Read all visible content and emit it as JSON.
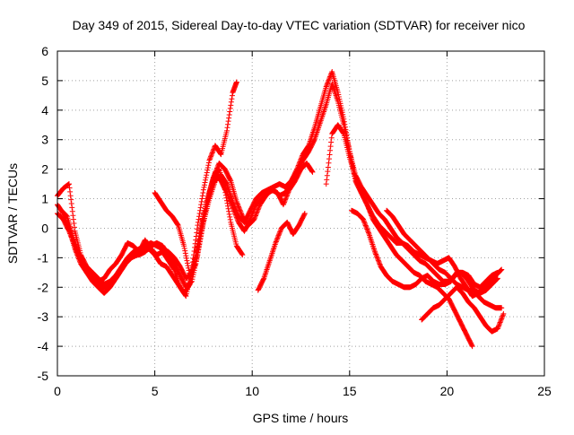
{
  "chart_data": {
    "type": "scatter",
    "title": "Day 349 of 2015, Sidereal Day-to-day VTEC variation (SDTVAR) for receiver nico",
    "xlabel": "GPS time / hours",
    "ylabel": "SDTVAR / TECUs",
    "xlim": [
      0,
      25
    ],
    "ylim": [
      -5,
      6
    ],
    "x_ticks": [
      0,
      5,
      10,
      15,
      20,
      25
    ],
    "y_ticks": [
      -5,
      -4,
      -3,
      -2,
      -1,
      0,
      1,
      2,
      3,
      4,
      5,
      6
    ],
    "x_tick_labels": [
      "0",
      "5",
      "10",
      "15",
      "20",
      "25"
    ],
    "y_tick_labels": [
      "-5",
      "-4",
      "-3",
      "-2",
      "-1",
      "0",
      "1",
      "2",
      "3",
      "4",
      "5",
      "6"
    ],
    "grid": true,
    "marker": "+",
    "color": "#ff0000",
    "series": [
      {
        "x": [
          0.0,
          0.3,
          0.6,
          0.9,
          1.2,
          1.5,
          1.8,
          2.1,
          2.4,
          2.7,
          3.0,
          3.3,
          3.6,
          3.9,
          4.2,
          4.5,
          4.8,
          5.1,
          5.4,
          5.7,
          6.0,
          6.3,
          6.6,
          6.9,
          7.2,
          7.5,
          7.8,
          8.1,
          8.4,
          8.7,
          9.0,
          9.2
        ],
        "y": [
          1.1,
          1.35,
          1.5,
          -0.1,
          -0.9,
          -1.3,
          -1.6,
          -1.8,
          -1.7,
          -1.4,
          -1.2,
          -0.9,
          -0.5,
          -0.6,
          -0.8,
          -0.4,
          -0.7,
          -0.9,
          -0.8,
          -1.1,
          -1.4,
          -2.0,
          -2.3,
          -1.4,
          0.1,
          1.3,
          2.3,
          2.8,
          2.5,
          3.3,
          4.6,
          4.95
        ]
      },
      {
        "x": [
          0.0,
          0.3,
          0.6,
          0.9,
          1.2,
          1.5,
          1.8,
          2.1,
          2.4,
          2.7,
          3.0,
          3.3,
          3.6,
          3.9,
          4.2,
          4.5,
          4.8,
          5.1,
          5.4,
          5.7,
          6.0,
          6.3,
          6.6,
          6.9,
          7.2,
          7.5,
          7.8,
          8.1,
          8.4,
          8.7,
          9.0,
          9.3,
          9.6,
          9.9,
          10.2,
          10.5,
          10.8,
          11.1,
          11.4,
          11.7,
          12.0,
          12.3,
          12.6,
          12.9,
          13.2,
          13.5,
          13.8,
          14.1,
          14.4,
          14.7,
          15.0,
          15.3,
          15.6,
          15.9,
          16.2,
          16.5,
          16.8,
          17.1,
          17.4,
          17.7,
          18.0,
          18.3,
          18.6,
          18.9,
          19.2,
          19.5,
          19.8,
          20.1,
          20.4,
          20.7,
          21.0,
          21.3,
          21.6,
          21.9,
          22.2,
          22.5,
          22.8
        ],
        "y": [
          0.5,
          0.3,
          -0.1,
          -0.6,
          -1.1,
          -1.3,
          -1.5,
          -1.7,
          -1.9,
          -1.8,
          -1.6,
          -1.3,
          -1.0,
          -0.8,
          -0.7,
          -0.6,
          -0.5,
          -0.6,
          -0.7,
          -0.8,
          -1.0,
          -1.3,
          -1.7,
          -1.5,
          -0.6,
          0.4,
          1.2,
          1.9,
          1.6,
          1.2,
          0.7,
          0.2,
          -0.1,
          0.3,
          0.8,
          1.0,
          1.2,
          1.3,
          1.1,
          1.2,
          1.5,
          1.9,
          2.3,
          2.6,
          3.0,
          3.6,
          4.2,
          4.9,
          4.3,
          3.5,
          2.6,
          1.6,
          1.2,
          0.8,
          0.4,
          0.1,
          -0.1,
          -0.3,
          -0.5,
          -0.5,
          -0.6,
          -0.8,
          -0.9,
          -1.0,
          -1.1,
          -1.2,
          -1.1,
          -1.0,
          -1.3,
          -1.7,
          -2.0,
          -2.3,
          -2.2,
          -2.0,
          -1.8,
          -1.6,
          -1.4
        ]
      },
      {
        "x": [
          0.0,
          0.3,
          0.6,
          0.9,
          1.2,
          1.5,
          1.8,
          2.1,
          2.4,
          2.7,
          3.0,
          3.3,
          3.6,
          3.9,
          4.2,
          4.5,
          4.8,
          5.1,
          5.4,
          5.7,
          6.0,
          6.3,
          6.6,
          6.9,
          7.2,
          7.5,
          7.8,
          8.1,
          8.4,
          8.7,
          9.0,
          9.3,
          9.6,
          9.9,
          10.2,
          10.5,
          10.8,
          11.1,
          11.4,
          11.7,
          12.0,
          12.3,
          12.6,
          12.9,
          13.2,
          13.5,
          13.8,
          14.1,
          14.4,
          14.7,
          15.0,
          15.3,
          15.6,
          15.9,
          16.2,
          16.5,
          16.8,
          17.1,
          17.4,
          17.7,
          18.0,
          18.3,
          18.6,
          18.9,
          19.2,
          19.5,
          19.8,
          20.1,
          20.4,
          20.7,
          21.0,
          21.3,
          21.6,
          21.9,
          22.2,
          22.5,
          22.8
        ],
        "y": [
          0.8,
          0.5,
          0.0,
          -0.7,
          -1.2,
          -1.5,
          -1.8,
          -2.0,
          -2.2,
          -2.0,
          -1.7,
          -1.4,
          -1.1,
          -0.9,
          -0.9,
          -0.8,
          -0.6,
          -0.5,
          -0.6,
          -0.9,
          -1.2,
          -1.6,
          -2.0,
          -1.8,
          -0.9,
          0.2,
          1.0,
          1.6,
          1.8,
          1.5,
          0.9,
          0.4,
          0.2,
          0.6,
          1.0,
          1.2,
          1.3,
          1.4,
          1.5,
          1.4,
          1.6,
          2.0,
          2.5,
          2.8,
          3.4,
          4.1,
          4.8,
          5.3,
          4.6,
          3.7,
          2.6,
          1.8,
          1.4,
          1.1,
          0.8,
          0.5,
          0.3,
          0.0,
          -0.3,
          -0.5,
          -0.7,
          -0.9,
          -1.1,
          -1.2,
          -1.4,
          -1.6,
          -1.8,
          -1.8,
          -1.6,
          -1.5,
          -1.7,
          -2.0,
          -2.3,
          -2.5,
          -2.6,
          -2.7,
          -2.7
        ]
      },
      {
        "x": [
          0.2,
          0.5,
          0.8,
          1.1,
          1.4,
          1.7,
          2.0,
          2.3,
          2.6,
          2.9,
          3.2,
          3.5,
          3.8,
          4.1,
          4.4,
          4.7,
          5.0,
          5.3,
          5.6,
          5.9,
          6.2,
          6.5,
          6.8,
          7.1,
          7.4,
          7.7,
          8.0,
          8.3,
          8.6,
          8.9,
          9.2,
          9.5
        ],
        "y": [
          0.6,
          0.4,
          -0.3,
          -0.9,
          -1.3,
          -1.6,
          -1.8,
          -2.0,
          -2.0,
          -1.8,
          -1.5,
          -1.2,
          -1.0,
          -0.9,
          -0.8,
          -0.7,
          -0.9,
          -1.2,
          -1.3,
          -1.6,
          -1.9,
          -2.2,
          -1.9,
          -0.9,
          0.2,
          1.0,
          1.7,
          2.0,
          1.3,
          0.2,
          -0.6,
          -0.9
        ]
      },
      {
        "x": [
          5.0,
          5.3,
          5.6,
          5.9,
          6.2,
          6.5,
          6.8,
          7.1,
          7.4,
          7.7,
          8.0,
          8.3,
          8.6,
          8.9,
          9.2,
          9.5,
          9.8,
          10.1,
          10.4,
          10.7,
          11.0,
          11.3,
          11.6,
          11.9,
          12.2,
          12.5,
          12.8,
          13.1
        ],
        "y": [
          1.2,
          0.9,
          0.6,
          0.4,
          0.1,
          -0.6,
          -1.6,
          -1.2,
          -0.1,
          0.9,
          1.7,
          2.2,
          2.0,
          1.6,
          0.9,
          0.4,
          0.1,
          0.3,
          0.8,
          1.1,
          1.3,
          1.2,
          0.8,
          1.3,
          1.6,
          2.0,
          2.2,
          1.9
        ]
      },
      {
        "x": [
          10.3,
          10.6,
          10.9,
          11.2,
          11.5,
          11.8,
          12.1,
          12.4,
          12.7
        ],
        "y": [
          -2.1,
          -1.7,
          -1.1,
          -0.5,
          0.0,
          0.2,
          -0.2,
          0.1,
          0.5
        ]
      },
      {
        "x": [
          13.8,
          14.1,
          14.4,
          14.7,
          15.0,
          15.3,
          15.6,
          15.9,
          16.2,
          16.5,
          16.8,
          17.1,
          17.4,
          17.7,
          18.0,
          18.3,
          18.6,
          18.9,
          19.2,
          19.5,
          19.8,
          20.1,
          20.4,
          20.7,
          21.0,
          21.3
        ],
        "y": [
          1.5,
          3.2,
          3.5,
          3.2,
          2.4,
          1.7,
          1.2,
          0.8,
          0.3,
          0.0,
          -0.3,
          -0.6,
          -0.9,
          -1.1,
          -1.3,
          -1.5,
          -1.6,
          -1.8,
          -1.9,
          -2.0,
          -2.2,
          -2.4,
          -2.8,
          -3.2,
          -3.6,
          -4.0
        ]
      },
      {
        "x": [
          15.1,
          15.4,
          15.7,
          16.0,
          16.3,
          16.6,
          16.9,
          17.2,
          17.5,
          17.8,
          18.1,
          18.4,
          18.7,
          19.0,
          19.3,
          19.6,
          19.9,
          20.2,
          20.5,
          20.8,
          21.1,
          21.4,
          21.7,
          22.0,
          22.3,
          22.6
        ],
        "y": [
          0.6,
          0.5,
          0.3,
          -0.2,
          -0.8,
          -1.3,
          -1.6,
          -1.8,
          -1.9,
          -2.0,
          -2.0,
          -1.9,
          -1.7,
          -1.6,
          -1.8,
          -1.9,
          -1.9,
          -1.8,
          -1.5,
          -1.5,
          -1.6,
          -1.9,
          -2.0,
          -1.8,
          -1.6,
          -1.5
        ]
      },
      {
        "x": [
          18.7,
          19.0,
          19.3,
          19.6,
          19.9,
          20.2,
          20.5,
          20.8,
          21.1,
          21.4,
          21.7,
          22.0,
          22.3,
          22.6,
          22.9
        ],
        "y": [
          -3.1,
          -2.9,
          -2.7,
          -2.6,
          -2.4,
          -2.2,
          -2.0,
          -2.2,
          -2.5,
          -2.7,
          -3.0,
          -3.3,
          -3.5,
          -3.4,
          -2.9
        ]
      },
      {
        "x": [
          16.9,
          17.2,
          17.5,
          17.8,
          18.1,
          18.4,
          18.7,
          19.0,
          19.3,
          19.6,
          19.9,
          20.2,
          20.5,
          20.8,
          21.1,
          21.4,
          21.7,
          22.0,
          22.3,
          22.6
        ],
        "y": [
          0.6,
          0.4,
          0.1,
          -0.2,
          -0.4,
          -0.6,
          -0.8,
          -1.0,
          -1.2,
          -1.4,
          -1.5,
          -1.7,
          -1.9,
          -2.0,
          -2.1,
          -2.1,
          -2.2,
          -2.1,
          -1.9,
          -1.7
        ]
      }
    ]
  }
}
